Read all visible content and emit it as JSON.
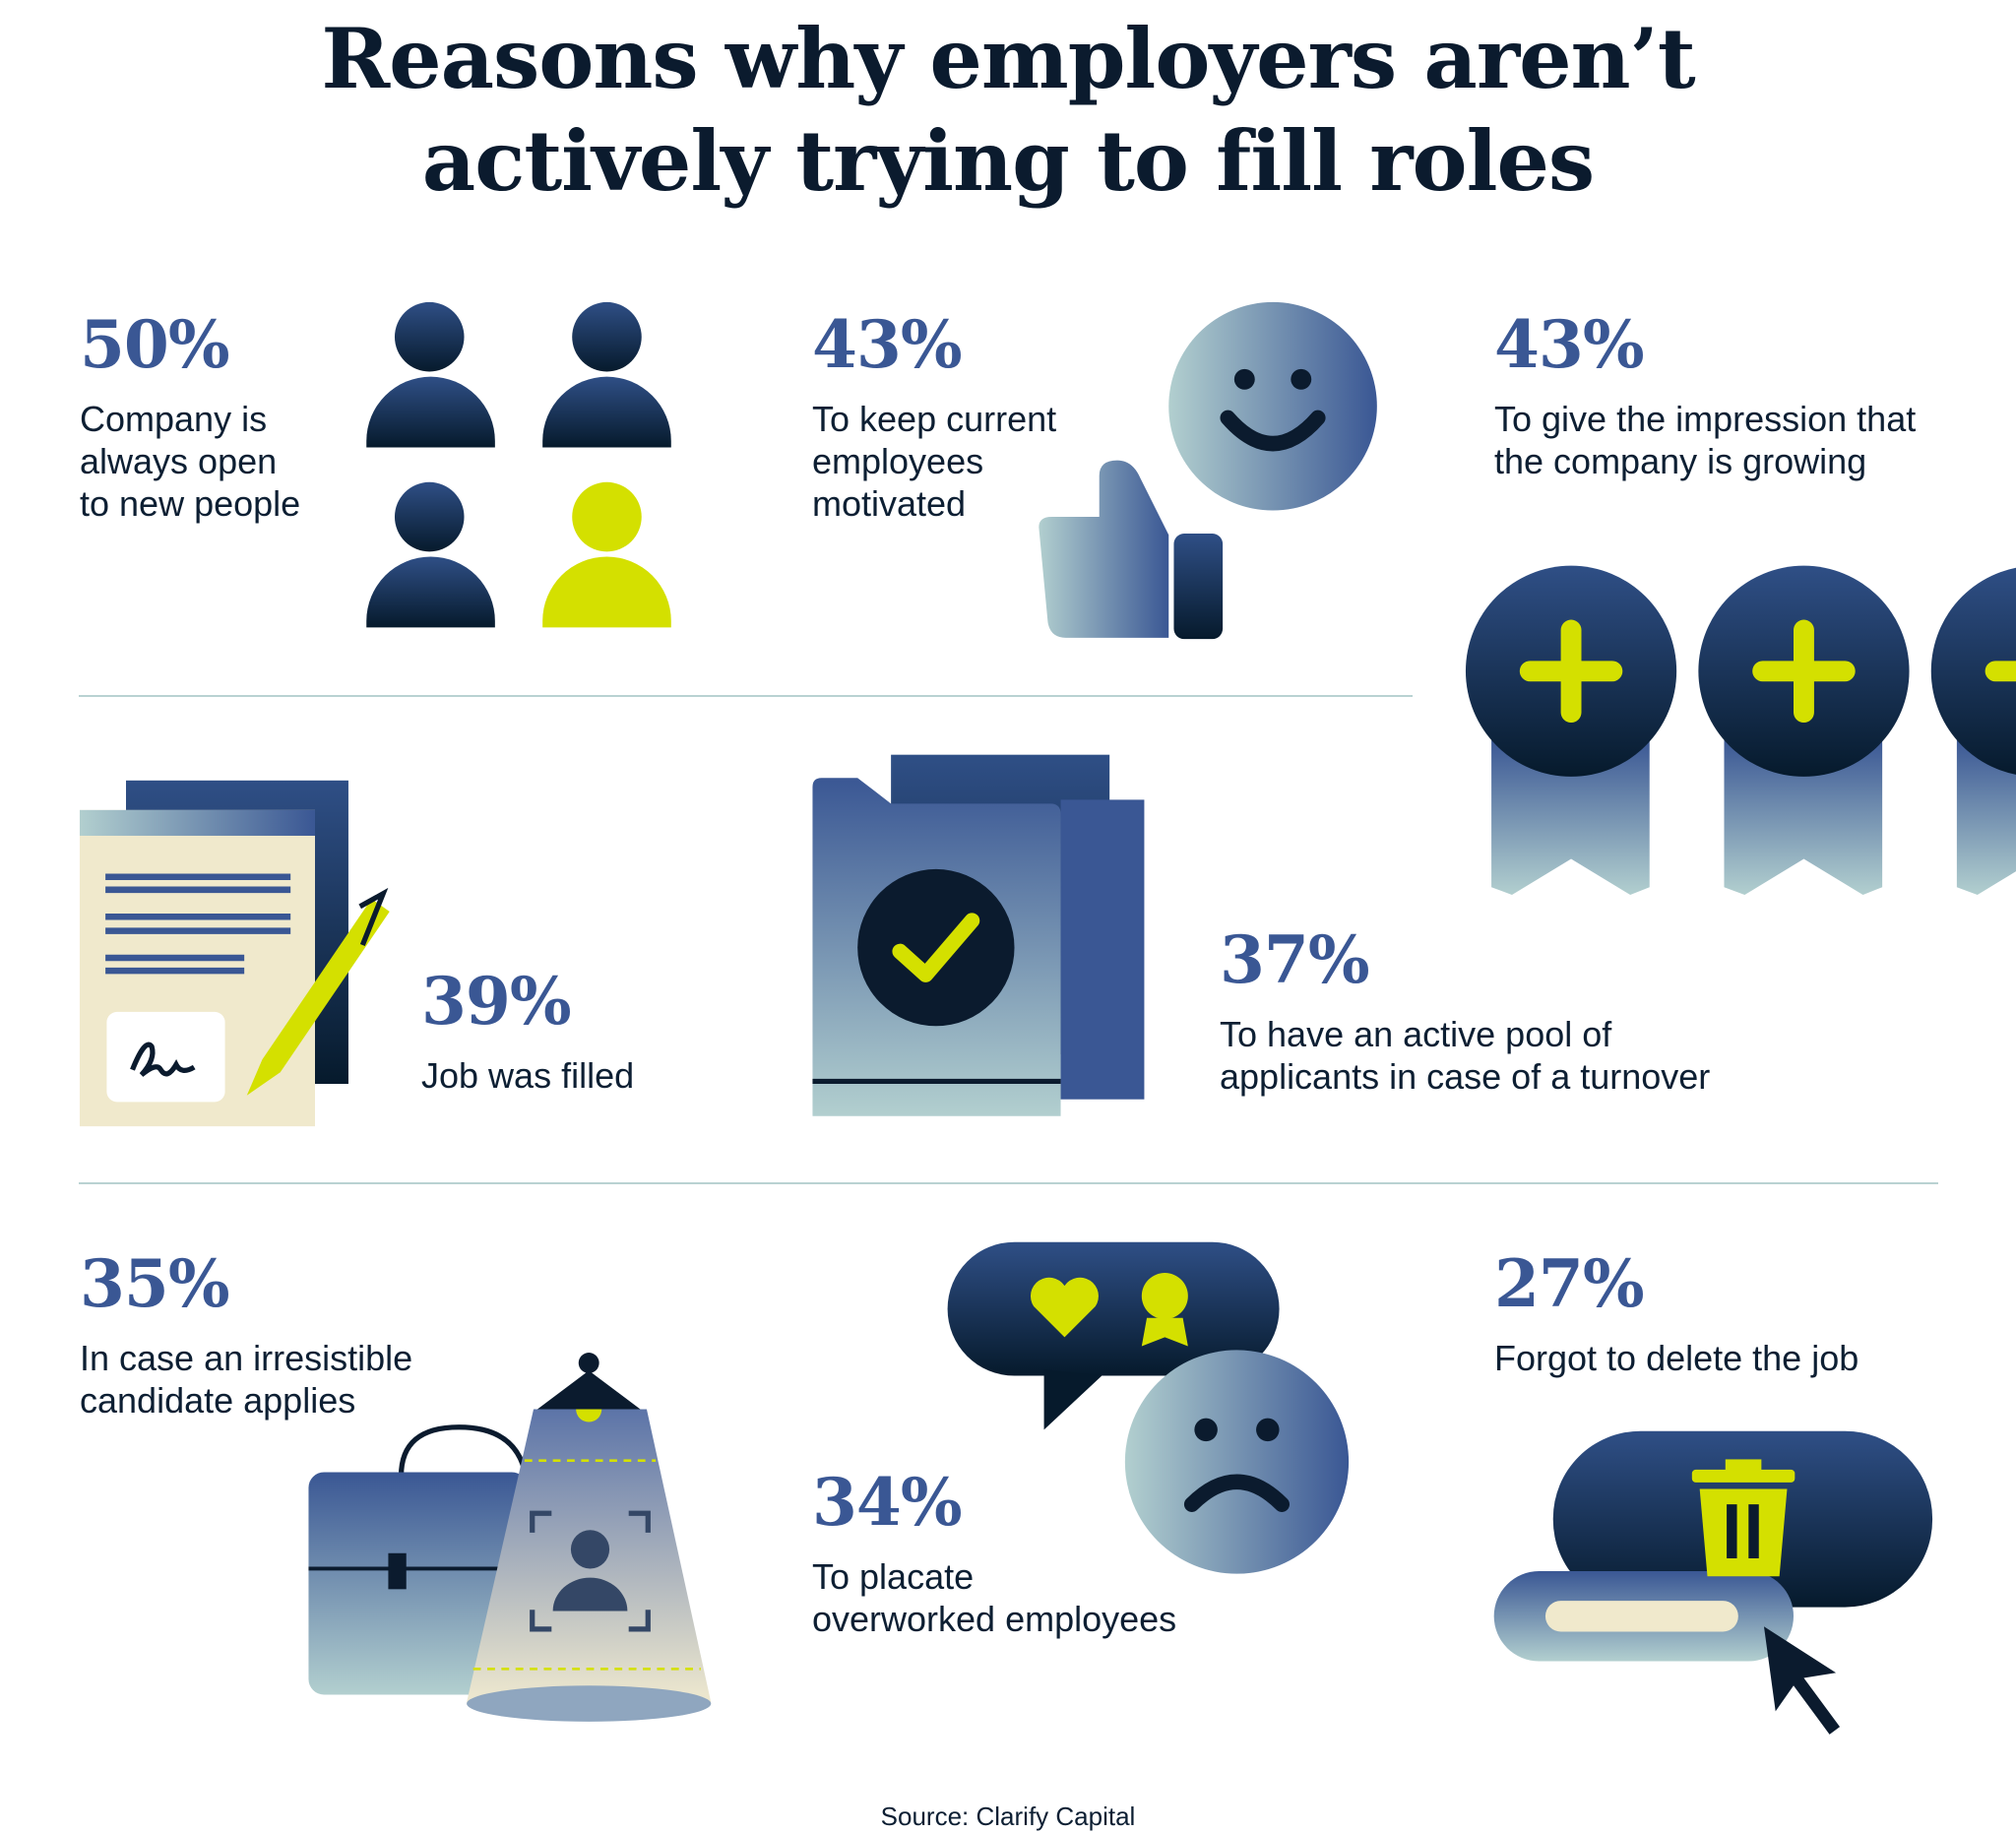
{
  "title": {
    "line1": "Reasons why employers aren’t",
    "line2": "actively trying to fill roles"
  },
  "stats": [
    {
      "percent": "50%",
      "text": "Company is\nalways open\nto new people",
      "icon": "people-icon"
    },
    {
      "percent": "43%",
      "text": "To keep current\nemployees\nmotivated",
      "icon": "smiley-thumbs-up-icon"
    },
    {
      "percent": "43%",
      "text": "To give the impression that\nthe company is growing",
      "icon": "medal-plus-icon"
    },
    {
      "percent": "39%",
      "text": "Job was filled",
      "icon": "signed-document-icon"
    },
    {
      "percent": "37%",
      "text": "To have an active pool of\napplicants in case of a turnover",
      "icon": "folder-check-icon"
    },
    {
      "percent": "35%",
      "text": "In case an irresistible\ncandidate applies",
      "icon": "briefcase-spotlight-icon"
    },
    {
      "percent": "34%",
      "text": "To placate\noverworked employees",
      "icon": "speech-bubble-sad-face-icon"
    },
    {
      "percent": "27%",
      "text": "Forgot to delete the job",
      "icon": "trash-toggle-cursor-icon"
    }
  ],
  "source": "Source: Clarify Capital",
  "colors": {
    "heading": "#0b1b2e",
    "percent": "#3a5794",
    "accent": "#d4e000",
    "divider": "#b9d2d2",
    "cream": "#f0e9cc"
  }
}
